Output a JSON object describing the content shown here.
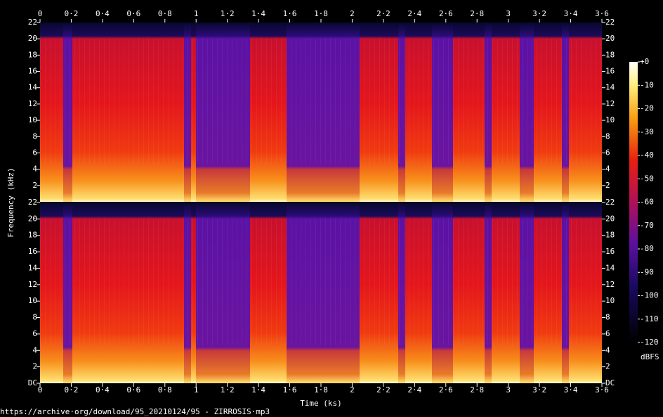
{
  "chart_data": {
    "type": "spectrogram",
    "xlabel": "Time (ks)",
    "ylabel": "Frequency (kHz)",
    "caption": "https://archive·org/download/95_20210124/95 - ZIRROSIS·mp3",
    "xlim": [
      0,
      3.6
    ],
    "xticks": [
      0,
      {
        "value": 0.2,
        "label": "0·2"
      },
      {
        "value": 0.4,
        "label": "0·4"
      },
      {
        "value": 0.6,
        "label": "0·6"
      },
      {
        "value": 0.8,
        "label": "0·8"
      },
      1,
      {
        "value": 1.2,
        "label": "1·2"
      },
      {
        "value": 1.4,
        "label": "1·4"
      },
      {
        "value": 1.6,
        "label": "1·6"
      },
      {
        "value": 1.8,
        "label": "1·8"
      },
      2,
      {
        "value": 2.2,
        "label": "2·2"
      },
      {
        "value": 2.4,
        "label": "2·4"
      },
      {
        "value": 2.6,
        "label": "2·6"
      },
      {
        "value": 2.8,
        "label": "2·8"
      },
      3,
      {
        "value": 3.2,
        "label": "3·2"
      },
      {
        "value": 3.4,
        "label": "3·4"
      },
      {
        "value": 3.6,
        "label": "3·6"
      }
    ],
    "channels": [
      {
        "ylim": [
          0,
          22
        ],
        "yticks": [
          2,
          4,
          6,
          8,
          10,
          12,
          14,
          16,
          18,
          20,
          22
        ]
      },
      {
        "ylim": [
          0,
          22
        ],
        "yticks": [
          {
            "value": 0,
            "label": "DC"
          },
          2,
          4,
          6,
          8,
          10,
          12,
          14,
          16,
          18,
          20,
          22
        ]
      }
    ],
    "colorbar": {
      "label": "dBFS",
      "lim": [
        -120,
        0
      ],
      "ticks": [
        {
          "value": 0,
          "label": "+0"
        },
        -10,
        -20,
        -30,
        -40,
        -50,
        -60,
        -70,
        -80,
        -90,
        -100,
        -110,
        -120
      ]
    }
  }
}
